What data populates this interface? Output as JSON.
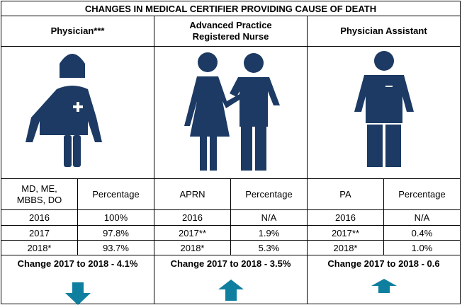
{
  "title": "CHANGES IN MEDICAL CERTIFIER PROVIDING CAUSE OF DEATH",
  "colors": {
    "icon": "#1c3a63",
    "arrow": "#0f7f9f"
  },
  "columns": [
    {
      "heading": "Physician***",
      "icon": "physician-icon",
      "type_label": "MD, ME, MBBS, DO",
      "value_label": "Percentage",
      "rows": [
        {
          "year": "2016",
          "pct": "100%"
        },
        {
          "year": "2017",
          "pct": "97.8%"
        },
        {
          "year": "2018*",
          "pct": "93.7%"
        }
      ],
      "change": "Change 2017 to 2018 - 4.1%",
      "direction": "down"
    },
    {
      "heading_line1": "Advanced Practice",
      "heading_line2": "Registered Nurse",
      "icon": "nurse-patient-icon",
      "type_label": "APRN",
      "value_label": "Percentage",
      "rows": [
        {
          "year": "2016",
          "pct": "N/A"
        },
        {
          "year": "2017**",
          "pct": "1.9%"
        },
        {
          "year": "2018*",
          "pct": "5.3%"
        }
      ],
      "change": "Change 2017 to 2018  -  3.5%",
      "direction": "up"
    },
    {
      "heading": "Physician Assistant",
      "icon": "physician-assistant-icon",
      "type_label": "PA",
      "value_label": "Percentage",
      "rows": [
        {
          "year": "2016",
          "pct": "N/A"
        },
        {
          "year": "2017**",
          "pct": "0.4%"
        },
        {
          "year": "2018*",
          "pct": "1.0%"
        }
      ],
      "change": "Change 2017 to 2018 - 0.6",
      "direction": "up"
    }
  ]
}
